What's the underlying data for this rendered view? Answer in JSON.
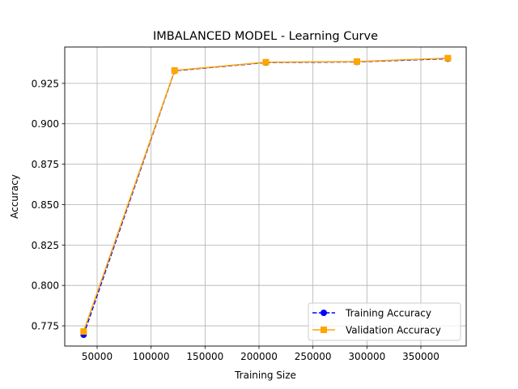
{
  "chart_data": {
    "type": "line",
    "title": "IMBALANCED MODEL - Learning Curve",
    "xlabel": "Training Size",
    "ylabel": "Accuracy",
    "xlim": [
      20000,
      392000
    ],
    "ylim": [
      0.7625,
      0.9475
    ],
    "xticks": [
      50000,
      100000,
      150000,
      200000,
      250000,
      300000,
      350000
    ],
    "xtick_labels": [
      "50000",
      "100000",
      "150000",
      "200000",
      "250000",
      "300000",
      "350000"
    ],
    "yticks": [
      0.775,
      0.8,
      0.825,
      0.85,
      0.875,
      0.9,
      0.925
    ],
    "ytick_labels": [
      "0.775",
      "0.800",
      "0.825",
      "0.850",
      "0.875",
      "0.900",
      "0.925"
    ],
    "grid": true,
    "legend_position": "lower-right",
    "x": [
      37500,
      121800,
      206300,
      290700,
      375000
    ],
    "series": [
      {
        "name": "Training Accuracy",
        "values": [
          0.7695,
          0.9328,
          0.9379,
          0.9383,
          0.9403
        ],
        "color": "#0000ff",
        "linestyle": "dashed",
        "marker": "circle"
      },
      {
        "name": "Validation Accuracy",
        "values": [
          0.7715,
          0.933,
          0.9381,
          0.9385,
          0.9406
        ],
        "color": "#ffa500",
        "linestyle": "solid",
        "marker": "square"
      }
    ]
  }
}
